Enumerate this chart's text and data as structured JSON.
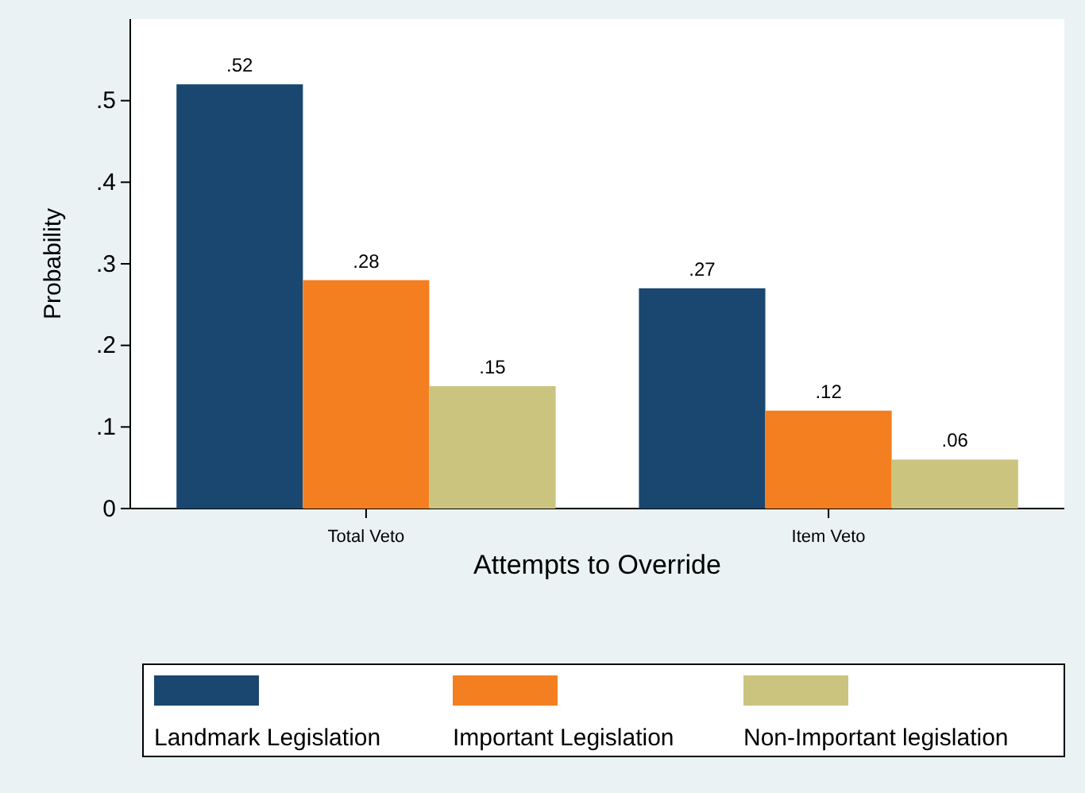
{
  "chart_data": {
    "type": "bar",
    "xlabel": "Attempts to Override",
    "ylabel": "Probability",
    "categories": [
      "Total Veto",
      "Item Veto"
    ],
    "series": [
      {
        "name": "Landmark Legislation",
        "color": "#1a476f",
        "values": [
          0.52,
          0.27
        ],
        "value_labels": [
          ".52",
          ".27"
        ]
      },
      {
        "name": "Important Legislation",
        "color": "#f47f20",
        "values": [
          0.28,
          0.12
        ],
        "value_labels": [
          ".28",
          ".12"
        ]
      },
      {
        "name": "Non-Important legislation",
        "color": "#cbc47f",
        "values": [
          0.15,
          0.06
        ],
        "value_labels": [
          ".15",
          ".06"
        ]
      }
    ],
    "ylim": [
      0,
      0.6
    ],
    "yticks": [
      {
        "value": 0,
        "label": "0"
      },
      {
        "value": 0.1,
        "label": ".1"
      },
      {
        "value": 0.2,
        "label": ".2"
      },
      {
        "value": 0.3,
        "label": ".3"
      },
      {
        "value": 0.4,
        "label": ".4"
      },
      {
        "value": 0.5,
        "label": ".5"
      }
    ],
    "grid": false,
    "legend": "bottom"
  }
}
